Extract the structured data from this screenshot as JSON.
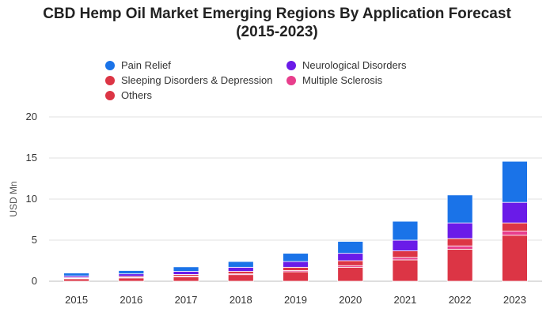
{
  "title_line1": "CBD Hemp Oil Market Emerging Regions By Application Forecast",
  "title_line2": "(2015-2023)",
  "colors": {
    "pain_relief": "#1a73e8",
    "neurological": "#6a1be8",
    "sleeping": "#dc3545",
    "multiple_sclerosis": "#e83e8c",
    "others": "#dc3545"
  },
  "legend": [
    {
      "name": "Pain Relief",
      "color": "#1a73e8"
    },
    {
      "name": "Neurological Disorders",
      "color": "#6a1be8"
    },
    {
      "name": "Sleeping Disorders & Depression",
      "color": "#dc3545"
    },
    {
      "name": "Multiple Sclerosis",
      "color": "#e83e8c"
    },
    {
      "name": "Others",
      "color": "#dc3545"
    }
  ],
  "chart_data": {
    "type": "bar",
    "stacked": true,
    "title": "CBD Hemp Oil Market Emerging Regions By Application Forecast (2015-2023)",
    "xlabel": "",
    "ylabel": "USD Mn",
    "ylim": [
      0,
      20
    ],
    "yticks": [
      "0",
      "5",
      "10",
      "15",
      "20"
    ],
    "grid": true,
    "legend_position": "top",
    "categories": [
      "2015",
      "2016",
      "2017",
      "2018",
      "2019",
      "2020",
      "2021",
      "2022",
      "2023"
    ],
    "series": [
      {
        "name": "Others",
        "color": "#dc3545",
        "values": [
          0.3,
          0.4,
          0.55,
          0.8,
          1.15,
          1.7,
          2.6,
          3.9,
          5.6
        ]
      },
      {
        "name": "Multiple Sclerosis",
        "color": "#e83e8c",
        "values": [
          0.05,
          0.05,
          0.07,
          0.1,
          0.15,
          0.2,
          0.3,
          0.4,
          0.5
        ]
      },
      {
        "name": "Sleeping Disorders & Depression",
        "color": "#dc3545",
        "values": [
          0.1,
          0.15,
          0.2,
          0.3,
          0.4,
          0.6,
          0.8,
          0.9,
          1.0
        ]
      },
      {
        "name": "Neurological Disorders",
        "color": "#6a1be8",
        "values": [
          0.2,
          0.3,
          0.38,
          0.5,
          0.7,
          0.9,
          1.3,
          1.9,
          2.5
        ]
      },
      {
        "name": "Pain Relief",
        "color": "#1a73e8",
        "values": [
          0.35,
          0.4,
          0.55,
          0.7,
          1.0,
          1.45,
          2.3,
          3.4,
          5.0
        ]
      }
    ]
  }
}
